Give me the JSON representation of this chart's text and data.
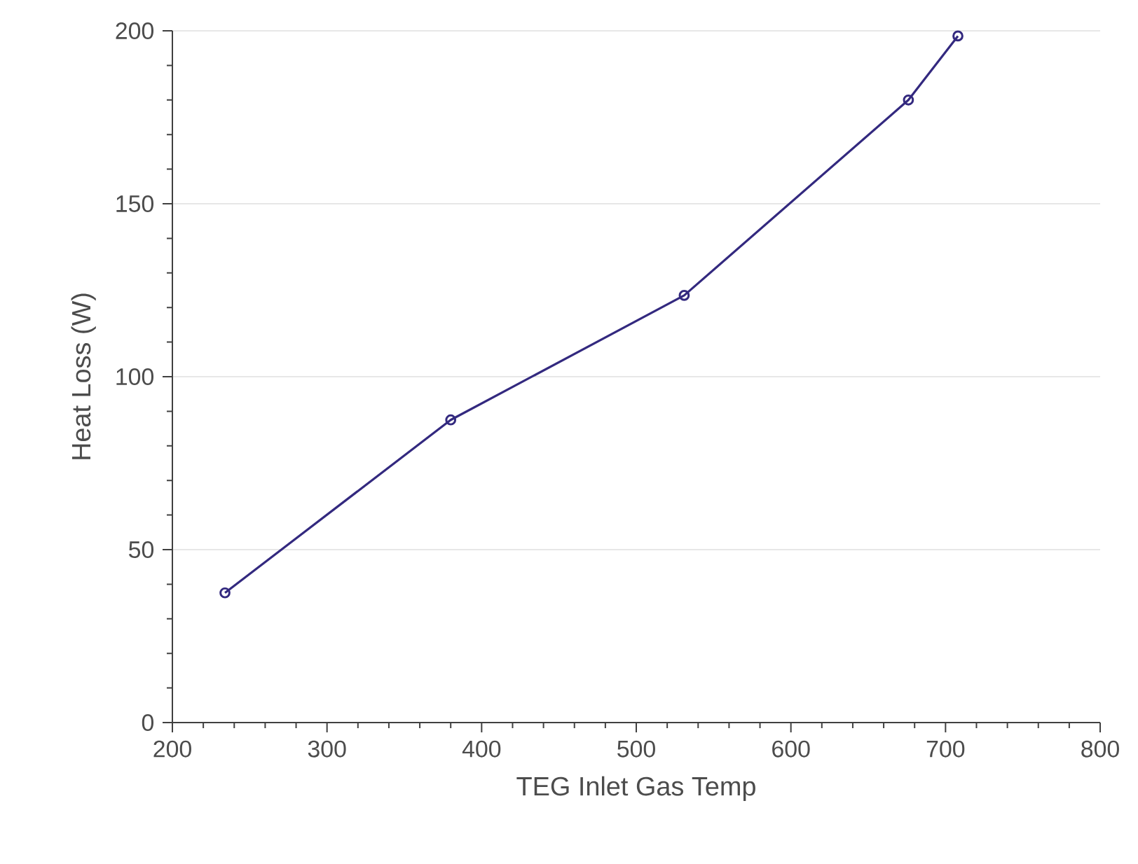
{
  "chart_data": {
    "type": "line",
    "xlabel": "TEG Inlet Gas Temp",
    "ylabel": "Heat Loss (W)",
    "x": [
      234,
      380,
      531,
      676,
      708
    ],
    "series": [
      {
        "color": "#33297f",
        "values": [
          37.5,
          87.5,
          123.5,
          180,
          198.5
        ]
      }
    ],
    "xlim": [
      200,
      800
    ],
    "ylim": [
      0,
      200
    ],
    "xticks": [
      200,
      300,
      400,
      500,
      600,
      700,
      800
    ],
    "yticks": [
      0,
      50,
      100,
      150,
      200
    ],
    "grid": "y",
    "marker": "circle",
    "line_style": "solid"
  }
}
